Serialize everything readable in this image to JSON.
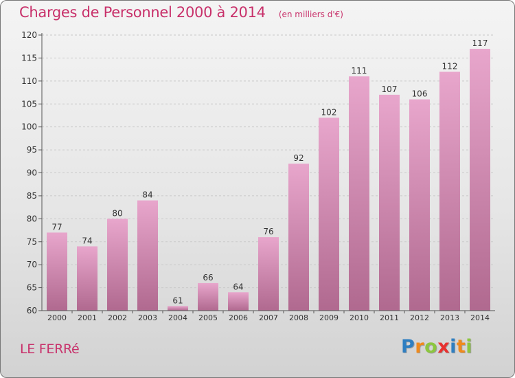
{
  "chart_data": {
    "type": "bar",
    "title": "Charges de Personnel 2000 à 2014",
    "subtitle": "(en milliers d'€)",
    "categories": [
      "2000",
      "2001",
      "2002",
      "2003",
      "2004",
      "2005",
      "2006",
      "2007",
      "2008",
      "2009",
      "2010",
      "2011",
      "2012",
      "2013",
      "2014"
    ],
    "values": [
      77,
      74,
      80,
      84,
      61,
      66,
      64,
      76,
      92,
      102,
      111,
      107,
      106,
      112,
      117
    ],
    "ylim": [
      60,
      120
    ],
    "yticks": [
      60,
      65,
      70,
      75,
      80,
      85,
      90,
      95,
      100,
      105,
      110,
      115,
      120
    ],
    "grid": true,
    "legend": "none",
    "bar_color_top": "#e8a6cc",
    "bar_color_bottom": "#b0698f",
    "accent_color": "#c8306a"
  },
  "commune": "LE FERRé",
  "logo": {
    "letters": [
      "P",
      "r",
      "o",
      "x",
      "i",
      "t",
      "i"
    ],
    "colors": [
      "#2f7fc1",
      "#f08a1c",
      "#8cc63f",
      "#e8312f",
      "#2f7fc1",
      "#f08a1c",
      "#8cc63f"
    ]
  }
}
